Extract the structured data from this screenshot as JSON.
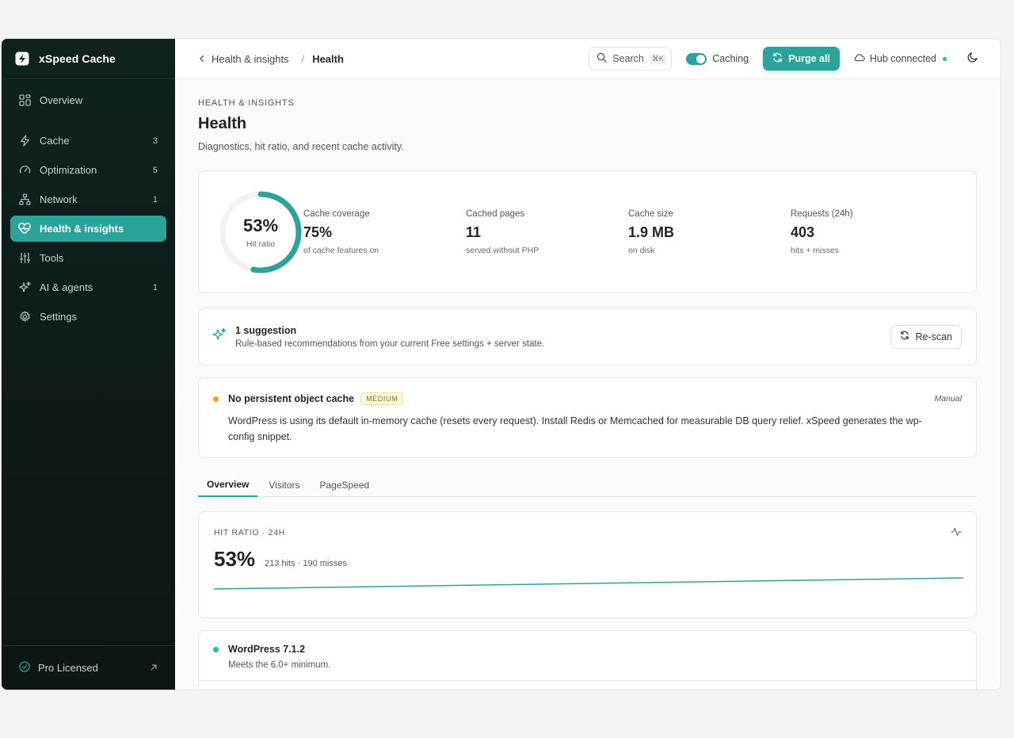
{
  "brand": {
    "name": "xSpeed Cache"
  },
  "sidebar": {
    "items": [
      {
        "label": "Overview",
        "count": ""
      },
      {
        "label": "Cache",
        "count": "3"
      },
      {
        "label": "Optimization",
        "count": "5"
      },
      {
        "label": "Network",
        "count": "1"
      },
      {
        "label": "Health & insights",
        "count": ""
      },
      {
        "label": "Tools",
        "count": ""
      },
      {
        "label": "AI & agents",
        "count": "1"
      },
      {
        "label": "Settings",
        "count": ""
      }
    ],
    "active": "Health & insights",
    "footer_label": "Pro Licensed"
  },
  "topbar": {
    "breadcrumb_parent": "Health & insights",
    "breadcrumb_separator": "/",
    "breadcrumb_current": "Health",
    "search_label": "Search",
    "search_shortcut": "⌘K",
    "caching_label": "Caching",
    "caching_on": true,
    "purge_label": "Purge all",
    "hub_label": "Hub connected"
  },
  "page": {
    "eyebrow": "HEALTH & INSIGHTS",
    "title": "Health",
    "subtitle": "Diagnostics, hit ratio, and recent cache activity."
  },
  "summary": {
    "hit_ratio_pct": "53%",
    "hit_ratio_value": 0.53,
    "hit_ratio_caption": "Hit ratio",
    "stats": [
      {
        "label": "Cache coverage",
        "value": "75%",
        "sub": "of cache features on"
      },
      {
        "label": "Cached pages",
        "value": "11",
        "sub": "served without PHP"
      },
      {
        "label": "Cache size",
        "value": "1.9 MB",
        "sub": "on disk"
      },
      {
        "label": "Requests (24h)",
        "value": "403",
        "sub": "hits + misses"
      }
    ]
  },
  "suggestions": {
    "title": "1 suggestion",
    "subtitle": "Rule-based recommendations from your current Free settings + server state.",
    "rescan_label": "Re-scan"
  },
  "issue": {
    "title": "No persistent object cache",
    "severity": "MEDIUM",
    "meta": "Manual",
    "description": "WordPress is using its default in-memory cache (resets every request). Install Redis or Memcached for measurable DB query relief. xSpeed generates the wp-config snippet."
  },
  "tabs": [
    "Overview",
    "Visitors",
    "PageSpeed"
  ],
  "active_tab": "Overview",
  "hit_ratio_card": {
    "label": "HIT RATIO · 24H",
    "value": "53%",
    "detail": "213 hits · 190 misses"
  },
  "checks": [
    {
      "title": "WordPress 7.1.2",
      "sub": "Meets the 6.0+ minimum.",
      "status": "ok"
    }
  ],
  "colors": {
    "accent": "#2aa39a",
    "warning": "#f0a020",
    "ok": "#1fbf8f",
    "sidebar_bg": "#0f2220"
  }
}
